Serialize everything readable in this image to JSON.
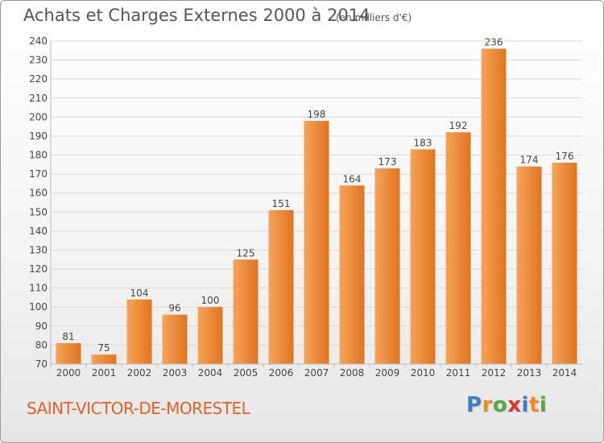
{
  "header": {
    "title": "Achats et Charges Externes 2000 à 2014",
    "unit_note": "(en milliers d'€)"
  },
  "footer": {
    "place": "SAINT-VICTOR-DE-MORESTEL",
    "logo_text": "Proxiti",
    "logo_letters": [
      {
        "ch": "P",
        "color": "#3d7fc4"
      },
      {
        "ch": "r",
        "color": "#f08a1c"
      },
      {
        "ch": "o",
        "color": "#56a93a"
      },
      {
        "ch": "x",
        "color": "#d8372c"
      },
      {
        "ch": "i",
        "color": "#3d7fc4"
      },
      {
        "ch": "t",
        "color": "#f08a1c"
      },
      {
        "ch": "i",
        "color": "#56a93a"
      }
    ]
  },
  "colors": {
    "bar_light": "#f6a35a",
    "bar_dark": "#e07520",
    "grid": "#d8d8d8",
    "axis_text": "#444444"
  },
  "chart_data": {
    "type": "bar",
    "title": "Achats et Charges Externes 2000 à 2014",
    "subtitle": "(en milliers d'€)",
    "categories": [
      "2000",
      "2001",
      "2002",
      "2003",
      "2004",
      "2005",
      "2006",
      "2007",
      "2008",
      "2009",
      "2010",
      "2011",
      "2012",
      "2013",
      "2014"
    ],
    "values": [
      81,
      75,
      104,
      96,
      100,
      125,
      151,
      198,
      164,
      173,
      183,
      192,
      236,
      174,
      176
    ],
    "ylim": [
      70,
      240
    ],
    "yticks": [
      70,
      80,
      90,
      100,
      110,
      120,
      130,
      140,
      150,
      160,
      170,
      180,
      190,
      200,
      210,
      220,
      230,
      240
    ],
    "grid": true,
    "data_labels": true
  }
}
